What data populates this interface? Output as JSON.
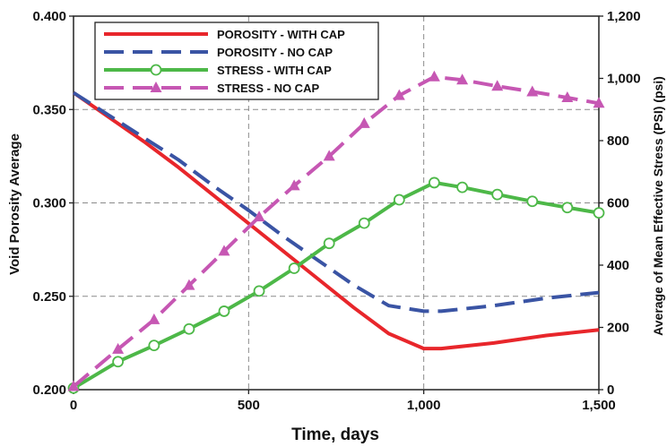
{
  "chart_data": {
    "type": "line",
    "title": "",
    "xlabel": "Time, days",
    "ylabel_left": "Void Porosity Average",
    "ylabel_right": "Average of  Mean Effective Stress (PSI) (psi)",
    "xlim": [
      0,
      1500
    ],
    "ylim_left": [
      0.2,
      0.4
    ],
    "ylim_right": [
      0,
      1200
    ],
    "x_ticks": [
      "0",
      "500",
      "1,000",
      "1,500"
    ],
    "y_left_ticks": [
      "0.200",
      "0.250",
      "0.300",
      "0.350",
      "0.400"
    ],
    "y_right_ticks": [
      "0",
      "200",
      "400",
      "600",
      "800",
      "1,000",
      "1,200"
    ],
    "grid": true,
    "legend_position": "top-left",
    "series": [
      {
        "name": "POROSITY - WITH CAP",
        "axis": "left",
        "color": "#e8262b",
        "style": "solid",
        "marker": "none",
        "x": [
          0,
          100,
          200,
          300,
          400,
          500,
          600,
          700,
          800,
          900,
          1000,
          1050,
          1200,
          1350,
          1500
        ],
        "y": [
          0.359,
          0.346,
          0.333,
          0.319,
          0.304,
          0.289,
          0.274,
          0.259,
          0.244,
          0.23,
          0.222,
          0.222,
          0.225,
          0.229,
          0.232
        ]
      },
      {
        "name": "POROSITY - NO CAP",
        "axis": "left",
        "color": "#3a54a4",
        "style": "dashed",
        "marker": "none",
        "x": [
          0,
          100,
          200,
          300,
          400,
          500,
          600,
          700,
          800,
          900,
          1000,
          1050,
          1200,
          1350,
          1500
        ],
        "y": [
          0.359,
          0.347,
          0.335,
          0.323,
          0.309,
          0.296,
          0.282,
          0.269,
          0.256,
          0.245,
          0.242,
          0.242,
          0.245,
          0.249,
          0.252
        ]
      },
      {
        "name": "STRESS - WITH CAP",
        "axis": "right",
        "color": "#4db848",
        "style": "solid",
        "marker": "circle",
        "x": [
          0,
          127,
          230,
          330,
          430,
          530,
          630,
          730,
          830,
          930,
          1030,
          1110,
          1210,
          1310,
          1410,
          1500
        ],
        "y": [
          5,
          90,
          142,
          195,
          252,
          317,
          390,
          470,
          535,
          610,
          665,
          650,
          627,
          605,
          585,
          568
        ]
      },
      {
        "name": "STRESS - NO CAP",
        "axis": "right",
        "color": "#c657b3",
        "style": "dashed",
        "marker": "triangle",
        "x": [
          0,
          127,
          230,
          330,
          430,
          530,
          630,
          730,
          830,
          930,
          1030,
          1110,
          1210,
          1310,
          1410,
          1500
        ],
        "y": [
          10,
          130,
          225,
          335,
          445,
          555,
          655,
          750,
          855,
          945,
          1005,
          995,
          975,
          957,
          938,
          920
        ]
      }
    ]
  }
}
